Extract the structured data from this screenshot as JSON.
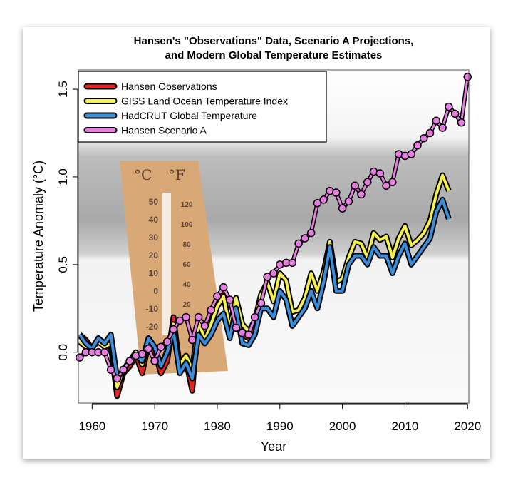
{
  "chart_data": {
    "type": "line",
    "title": "Hansen's \"Observations\" Data, Scenario A Projections,",
    "title_line2": "and Modern Global Temperature Estimates",
    "xlabel": "Year",
    "ylabel": "Temperature Anomaly (°C)",
    "xlim": [
      1957.8,
      2020.2
    ],
    "ylim": [
      -0.29,
      1.61
    ],
    "xticks": [
      1960,
      1970,
      1980,
      1990,
      2000,
      2010,
      2020
    ],
    "yticks": [
      0.0,
      0.5,
      1.0,
      1.5
    ],
    "ytick_labels": [
      "0.0",
      "0.5",
      "1.0",
      "1.5"
    ],
    "legend_position": "top-left",
    "grid": false,
    "thermometer_labels": {
      "celsius": "°C",
      "fahrenheit": "°F",
      "c_ticks": [
        "50",
        "40",
        "30",
        "20",
        "10",
        "0",
        "-10",
        "-20"
      ],
      "f_ticks": [
        "120",
        "100",
        "80",
        "60",
        "40",
        "20"
      ]
    },
    "series": [
      {
        "name": "Hansen Observations",
        "color": "#e8231f",
        "markers": false,
        "x_start": 1958,
        "values": [
          0.1,
          0.07,
          0.02,
          0.08,
          0.05,
          0.03,
          -0.25,
          -0.12,
          -0.08,
          -0.02,
          -0.12,
          0.05,
          0.0,
          -0.12,
          -0.05,
          0.2,
          -0.1,
          -0.05,
          -0.22,
          0.2,
          0.05,
          0.12,
          0.3,
          0.35,
          0.1,
          0.3,
          0.1,
          0.08,
          0.15,
          0.33
        ]
      },
      {
        "name": "GISS Land Ocean Temperature Index",
        "color": "#f5f14a",
        "markers": false,
        "x_start": 1958,
        "values": [
          0.06,
          0.03,
          0.03,
          0.06,
          0.03,
          0.05,
          -0.2,
          -0.1,
          -0.05,
          0.0,
          -0.07,
          0.08,
          0.03,
          -0.08,
          0.01,
          0.16,
          -0.07,
          -0.02,
          -0.1,
          0.18,
          0.07,
          0.16,
          0.26,
          0.32,
          0.14,
          0.31,
          0.16,
          0.12,
          0.18,
          0.33,
          0.4,
          0.29,
          0.45,
          0.41,
          0.23,
          0.24,
          0.31,
          0.45,
          0.35,
          0.46,
          0.63,
          0.4,
          0.42,
          0.54,
          0.63,
          0.62,
          0.54,
          0.68,
          0.64,
          0.66,
          0.54,
          0.65,
          0.72,
          0.61,
          0.64,
          0.68,
          0.75,
          0.9,
          1.01,
          0.92
        ]
      },
      {
        "name": "HadCRUT Global Temperature",
        "color": "#3a8fdc",
        "markers": false,
        "x_start": 1958,
        "values": [
          0.1,
          0.05,
          0.02,
          0.08,
          0.05,
          0.1,
          -0.15,
          -0.1,
          -0.05,
          -0.02,
          -0.05,
          0.08,
          0.03,
          -0.08,
          0.0,
          0.12,
          -0.12,
          -0.06,
          -0.15,
          0.1,
          0.05,
          0.1,
          0.18,
          0.22,
          0.08,
          0.25,
          0.05,
          0.04,
          0.1,
          0.25,
          0.25,
          0.2,
          0.35,
          0.3,
          0.15,
          0.2,
          0.25,
          0.35,
          0.25,
          0.4,
          0.6,
          0.35,
          0.35,
          0.5,
          0.55,
          0.55,
          0.5,
          0.6,
          0.55,
          0.55,
          0.45,
          0.55,
          0.62,
          0.5,
          0.55,
          0.6,
          0.65,
          0.8,
          0.87,
          0.76
        ]
      },
      {
        "name": "Hansen Scenario A",
        "color": "#e77de0",
        "markers": true,
        "x_start": 1958,
        "values": [
          -0.03,
          0.0,
          0.0,
          0.0,
          0.0,
          -0.1,
          -0.15,
          -0.1,
          -0.05,
          -0.02,
          -0.01,
          0.02,
          -0.05,
          0.03,
          0.06,
          0.13,
          0.18,
          0.2,
          0.07,
          0.2,
          0.15,
          0.24,
          0.32,
          0.37,
          0.3,
          0.14,
          0.11,
          0.1,
          0.2,
          0.28,
          0.43,
          0.45,
          0.5,
          0.51,
          0.51,
          0.62,
          0.65,
          0.68,
          0.85,
          0.87,
          0.92,
          0.91,
          0.82,
          0.86,
          0.95,
          0.9,
          0.97,
          1.03,
          1.02,
          0.95,
          0.97,
          1.13,
          1.12,
          1.13,
          1.18,
          1.22,
          1.25,
          1.32,
          1.28,
          1.4,
          1.36,
          1.31,
          1.57
        ]
      }
    ]
  }
}
